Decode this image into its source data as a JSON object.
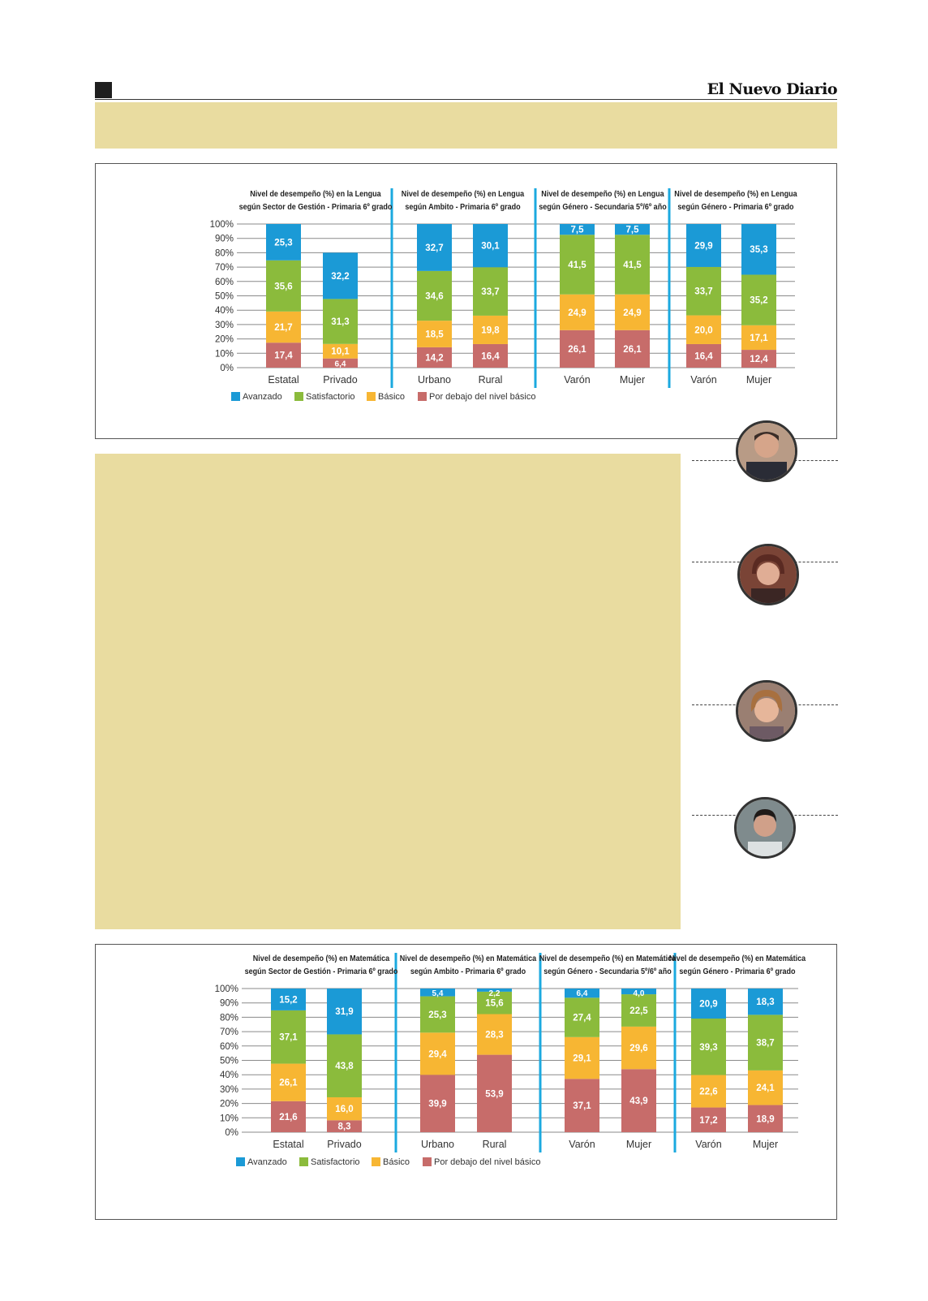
{
  "header": {
    "brand": "El Nuevo Diario"
  },
  "colors": {
    "avanzado": "#1b9ad6",
    "satisfactorio": "#8bbb3c",
    "basico": "#f7b633",
    "debajo": "#c76c6a",
    "divider": "#1ba9df",
    "band": "#e9dca0"
  },
  "charts": [
    {
      "id": "lengua",
      "yticks": [
        "100%",
        "90%",
        "80%",
        "70%",
        "60%",
        "50%",
        "40%",
        "30%",
        "20%",
        "10%",
        "0%"
      ],
      "legend": [
        "Avanzado",
        "Satisfactorio",
        "Básico",
        "Por debajo del nivel básico"
      ]
    },
    {
      "id": "matematica",
      "yticks": [
        "100%",
        "90%",
        "80%",
        "70%",
        "60%",
        "50%",
        "40%",
        "30%",
        "20%",
        "10%",
        "0%"
      ],
      "legend": [
        "Avanzado",
        "Satisfactorio",
        "Básico",
        "Por debajo del nivel básico"
      ]
    }
  ],
  "chart_data": [
    {
      "type": "bar",
      "stacked": true,
      "ylim": [
        0,
        100
      ],
      "series_names": [
        "Por debajo del nivel básico",
        "Básico",
        "Satisfactorio",
        "Avanzado"
      ],
      "groups": [
        {
          "title": [
            "Nivel de desempeño (%) en la Lengua",
            "según Sector de Gestión - Primaria 6º grado"
          ],
          "categories": [
            "Estatal",
            "Privado"
          ],
          "values": [
            [
              17.4,
              21.7,
              35.6,
              25.3
            ],
            [
              6.4,
              10.1,
              31.3,
              32.2
            ]
          ],
          "labels": [
            [
              "17,4",
              "21,7",
              "35,6",
              "25,3"
            ],
            [
              "6,4",
              "10,1",
              "31,3",
              "32,2"
            ]
          ]
        },
        {
          "title": [
            "Nivel de desempeño (%) en Lengua",
            "según Ambito - Primaria 6º grado"
          ],
          "categories": [
            "Urbano",
            "Rural"
          ],
          "values": [
            [
              14.2,
              18.5,
              34.6,
              32.7
            ],
            [
              16.4,
              19.8,
              33.7,
              30.1
            ]
          ],
          "labels": [
            [
              "14,2",
              "18,5",
              "34,6",
              "32,7"
            ],
            [
              "16,4",
              "19,8",
              "33,7",
              "30,1"
            ]
          ]
        },
        {
          "title": [
            "Nivel de desempeño (%) en Lengua",
            "según Género - Secundaria 5º/6º año"
          ],
          "categories": [
            "Varón",
            "Mujer"
          ],
          "values": [
            [
              26.1,
              24.9,
              41.5,
              7.5
            ],
            [
              26.1,
              24.9,
              41.5,
              7.5
            ]
          ],
          "labels": [
            [
              "26,1",
              "24,9",
              "41,5",
              "7,5"
            ],
            [
              "26,1",
              "24,9",
              "41,5",
              "7,5"
            ]
          ]
        },
        {
          "title": [
            "Nivel de desempeño (%) en Lengua",
            "según Género - Primaria 6º grado"
          ],
          "categories": [
            "Varón",
            "Mujer"
          ],
          "values": [
            [
              16.4,
              20.0,
              33.7,
              29.9
            ],
            [
              12.4,
              17.1,
              35.2,
              35.3
            ]
          ],
          "labels": [
            [
              "16,4",
              "20,0",
              "33,7",
              "29,9"
            ],
            [
              "12,4",
              "17,1",
              "35,2",
              "35,3"
            ]
          ]
        }
      ]
    },
    {
      "type": "bar",
      "stacked": true,
      "ylim": [
        0,
        100
      ],
      "series_names": [
        "Por debajo del nivel básico",
        "Básico",
        "Satisfactorio",
        "Avanzado"
      ],
      "groups": [
        {
          "title": [
            "Nivel de desempeño (%) en Matemática",
            "según Sector de Gestión - Primaria 6º grado"
          ],
          "categories": [
            "Estatal",
            "Privado"
          ],
          "values": [
            [
              21.6,
              26.1,
              37.1,
              15.2
            ],
            [
              8.3,
              16.0,
              43.8,
              31.9
            ]
          ],
          "labels": [
            [
              "21,6",
              "26,1",
              "37,1",
              "15,2"
            ],
            [
              "8,3",
              "16,0",
              "43,8",
              "31,9"
            ]
          ]
        },
        {
          "title": [
            "Nivel de desempeño (%) en Matemática",
            "según Ambito - Primaria 6º grado"
          ],
          "categories": [
            "Urbano",
            "Rural"
          ],
          "values": [
            [
              39.9,
              29.4,
              25.3,
              5.4
            ],
            [
              53.9,
              28.3,
              15.6,
              2.2
            ]
          ],
          "labels": [
            [
              "39,9",
              "29,4",
              "25,3",
              "5,4"
            ],
            [
              "53,9",
              "28,3",
              "15,6",
              "2,2"
            ]
          ]
        },
        {
          "title": [
            "Nivel de desempeño (%) en Matemática",
            "según Género - Secundaria 5º/6º año"
          ],
          "categories": [
            "Varón",
            "Mujer"
          ],
          "values": [
            [
              37.1,
              29.1,
              27.4,
              6.4
            ],
            [
              43.9,
              29.6,
              22.5,
              4.0
            ]
          ],
          "labels": [
            [
              "37,1",
              "29,1",
              "27,4",
              "6,4"
            ],
            [
              "43,9",
              "29,6",
              "22,5",
              "4,0"
            ]
          ]
        },
        {
          "title": [
            "Nivel de desempeño (%) en Matemática",
            "según Género - Primaria 6º grado"
          ],
          "categories": [
            "Varón",
            "Mujer"
          ],
          "values": [
            [
              17.2,
              22.6,
              39.3,
              20.9
            ],
            [
              18.9,
              24.1,
              38.7,
              18.3
            ]
          ],
          "labels": [
            [
              "17,2",
              "22,6",
              "39,3",
              "20,9"
            ],
            [
              "18,9",
              "24,1",
              "38,7",
              "18,3"
            ]
          ]
        }
      ]
    }
  ]
}
